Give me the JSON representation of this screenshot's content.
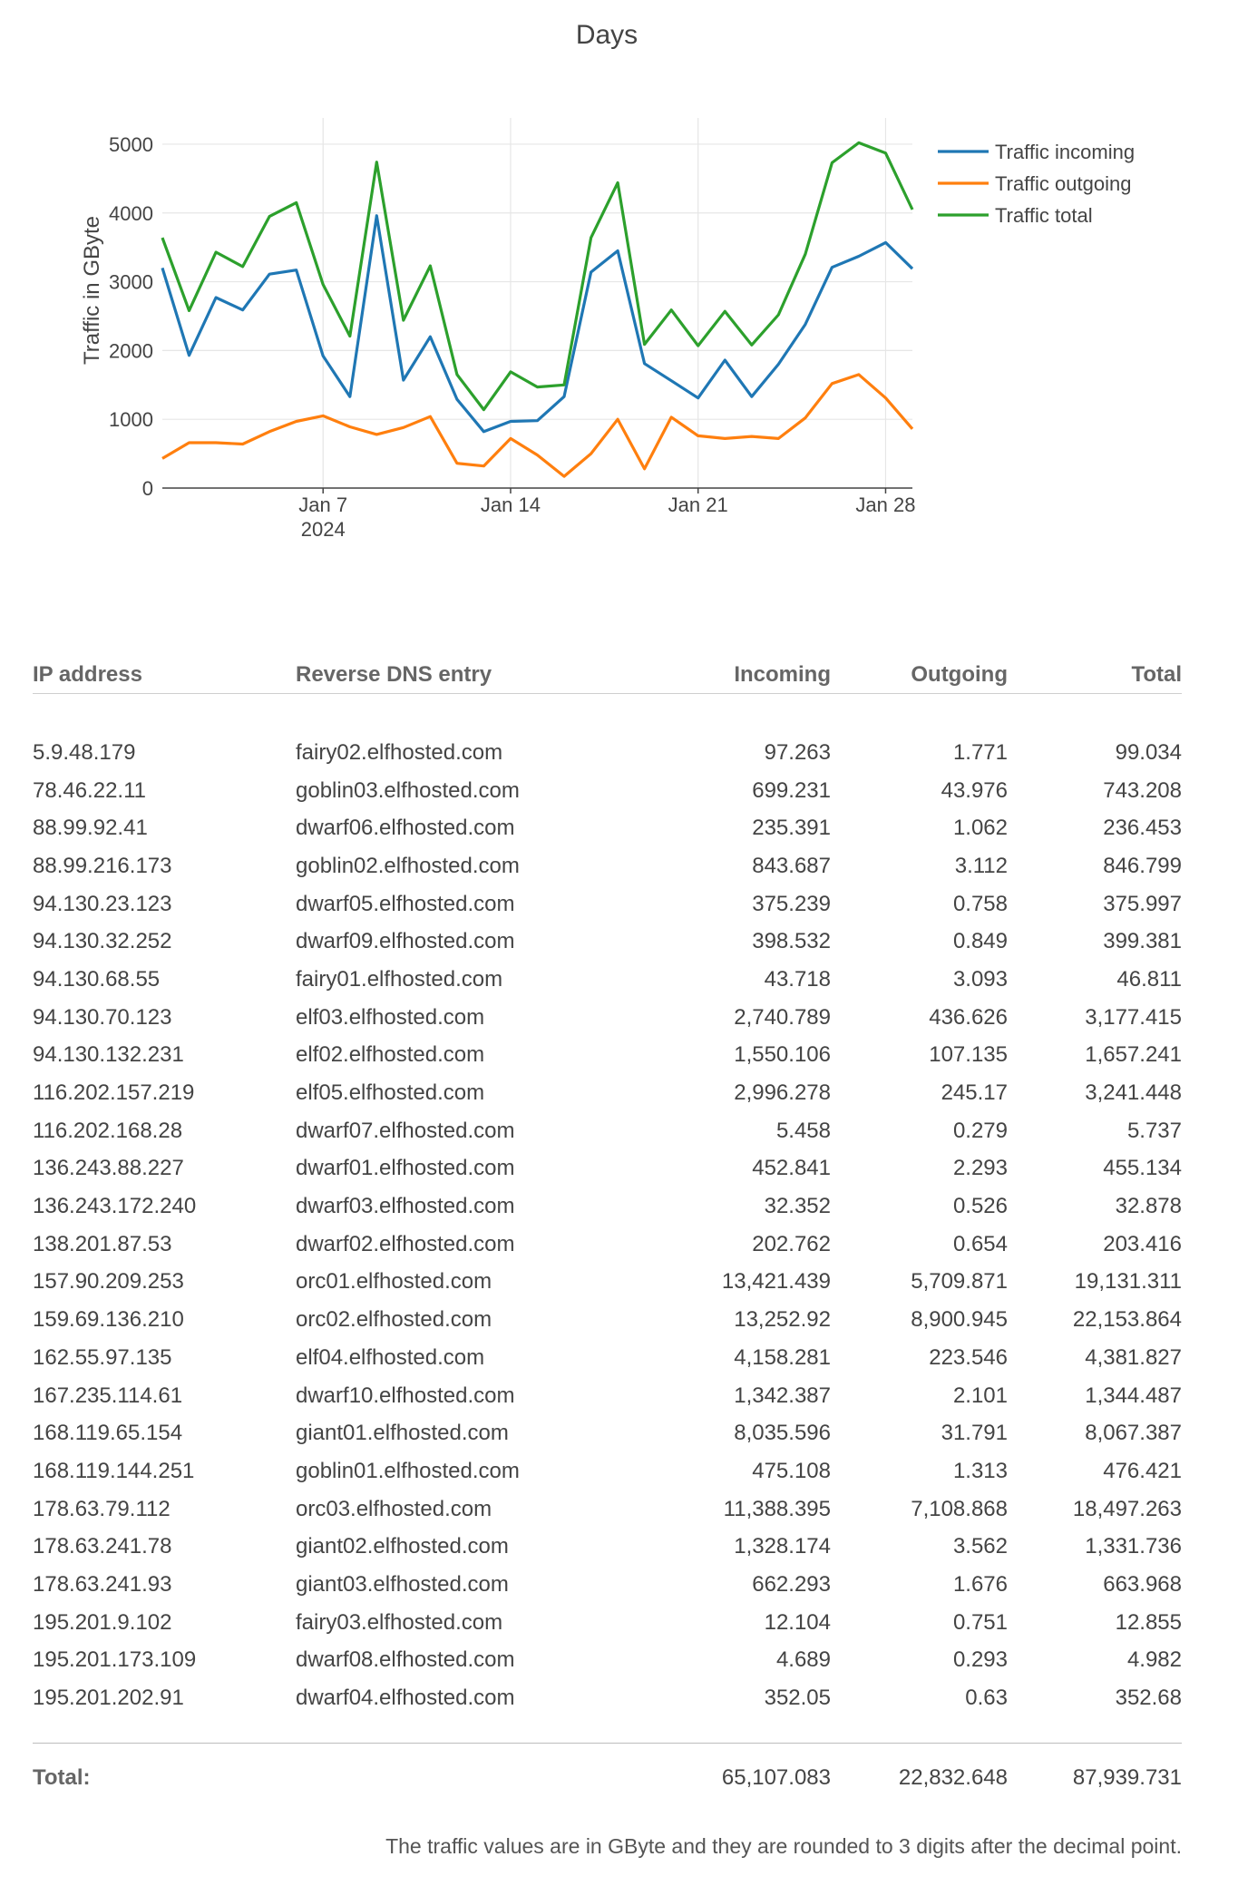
{
  "chart_data": {
    "type": "line",
    "title": "Days",
    "ylabel": "Traffic in GByte",
    "xlabel": "",
    "ylim": [
      0,
      5250
    ],
    "yticks": [
      0,
      1000,
      2000,
      3000,
      4000,
      5000
    ],
    "x": [
      "2024-01-01",
      "2024-01-02",
      "2024-01-03",
      "2024-01-04",
      "2024-01-05",
      "2024-01-06",
      "2024-01-07",
      "2024-01-08",
      "2024-01-09",
      "2024-01-10",
      "2024-01-11",
      "2024-01-12",
      "2024-01-13",
      "2024-01-14",
      "2024-01-15",
      "2024-01-16",
      "2024-01-17",
      "2024-01-18",
      "2024-01-19",
      "2024-01-20",
      "2024-01-21",
      "2024-01-22",
      "2024-01-23",
      "2024-01-24",
      "2024-01-25",
      "2024-01-26",
      "2024-01-27",
      "2024-01-28",
      "2024-01-29"
    ],
    "xticks": [
      {
        "date": "2024-01-07",
        "label": "Jan 7",
        "sublabel": "2024"
      },
      {
        "date": "2024-01-14",
        "label": "Jan 14",
        "sublabel": ""
      },
      {
        "date": "2024-01-21",
        "label": "Jan 21",
        "sublabel": ""
      },
      {
        "date": "2024-01-28",
        "label": "Jan 28",
        "sublabel": ""
      }
    ],
    "legend_position": "top-right",
    "grid": true,
    "series": [
      {
        "name": "Traffic incoming",
        "color": "#1f77b4",
        "values": [
          3200,
          1930,
          2770,
          2590,
          3110,
          3170,
          1920,
          1330,
          3960,
          1570,
          2200,
          1290,
          820,
          970,
          980,
          1330,
          3140,
          3450,
          1810,
          1560,
          1310,
          1860,
          1330,
          1800,
          2380,
          3210,
          3370,
          3570,
          3190
        ]
      },
      {
        "name": "Traffic outgoing",
        "color": "#ff7f0e",
        "values": [
          430,
          660,
          660,
          640,
          820,
          970,
          1050,
          890,
          780,
          880,
          1040,
          360,
          320,
          720,
          480,
          170,
          500,
          1000,
          280,
          1030,
          760,
          720,
          750,
          720,
          1020,
          1520,
          1650,
          1310,
          860
        ]
      },
      {
        "name": "Traffic total",
        "color": "#2ca02c",
        "values": [
          3640,
          2580,
          3430,
          3220,
          3950,
          4150,
          2960,
          2210,
          4740,
          2440,
          3230,
          1650,
          1140,
          1690,
          1470,
          1500,
          3640,
          4440,
          2090,
          2590,
          2070,
          2570,
          2080,
          2520,
          3400,
          4730,
          5020,
          4870,
          4050
        ]
      }
    ]
  },
  "table": {
    "headers": {
      "ip": "IP address",
      "dns": "Reverse DNS entry",
      "incoming": "Incoming",
      "outgoing": "Outgoing",
      "total": "Total"
    },
    "rows": [
      {
        "ip": "5.9.48.179",
        "dns": "fairy02.elfhosted.com",
        "incoming": "97.263",
        "outgoing": "1.771",
        "total": "99.034"
      },
      {
        "ip": "78.46.22.11",
        "dns": "goblin03.elfhosted.com",
        "incoming": "699.231",
        "outgoing": "43.976",
        "total": "743.208"
      },
      {
        "ip": "88.99.92.41",
        "dns": "dwarf06.elfhosted.com",
        "incoming": "235.391",
        "outgoing": "1.062",
        "total": "236.453"
      },
      {
        "ip": "88.99.216.173",
        "dns": "goblin02.elfhosted.com",
        "incoming": "843.687",
        "outgoing": "3.112",
        "total": "846.799"
      },
      {
        "ip": "94.130.23.123",
        "dns": "dwarf05.elfhosted.com",
        "incoming": "375.239",
        "outgoing": "0.758",
        "total": "375.997"
      },
      {
        "ip": "94.130.32.252",
        "dns": "dwarf09.elfhosted.com",
        "incoming": "398.532",
        "outgoing": "0.849",
        "total": "399.381"
      },
      {
        "ip": "94.130.68.55",
        "dns": "fairy01.elfhosted.com",
        "incoming": "43.718",
        "outgoing": "3.093",
        "total": "46.811"
      },
      {
        "ip": "94.130.70.123",
        "dns": "elf03.elfhosted.com",
        "incoming": "2,740.789",
        "outgoing": "436.626",
        "total": "3,177.415"
      },
      {
        "ip": "94.130.132.231",
        "dns": "elf02.elfhosted.com",
        "incoming": "1,550.106",
        "outgoing": "107.135",
        "total": "1,657.241"
      },
      {
        "ip": "116.202.157.219",
        "dns": "elf05.elfhosted.com",
        "incoming": "2,996.278",
        "outgoing": "245.17",
        "total": "3,241.448"
      },
      {
        "ip": "116.202.168.28",
        "dns": "dwarf07.elfhosted.com",
        "incoming": "5.458",
        "outgoing": "0.279",
        "total": "5.737"
      },
      {
        "ip": "136.243.88.227",
        "dns": "dwarf01.elfhosted.com",
        "incoming": "452.841",
        "outgoing": "2.293",
        "total": "455.134"
      },
      {
        "ip": "136.243.172.240",
        "dns": "dwarf03.elfhosted.com",
        "incoming": "32.352",
        "outgoing": "0.526",
        "total": "32.878"
      },
      {
        "ip": "138.201.87.53",
        "dns": "dwarf02.elfhosted.com",
        "incoming": "202.762",
        "outgoing": "0.654",
        "total": "203.416"
      },
      {
        "ip": "157.90.209.253",
        "dns": "orc01.elfhosted.com",
        "incoming": "13,421.439",
        "outgoing": "5,709.871",
        "total": "19,131.311"
      },
      {
        "ip": "159.69.136.210",
        "dns": "orc02.elfhosted.com",
        "incoming": "13,252.92",
        "outgoing": "8,900.945",
        "total": "22,153.864"
      },
      {
        "ip": "162.55.97.135",
        "dns": "elf04.elfhosted.com",
        "incoming": "4,158.281",
        "outgoing": "223.546",
        "total": "4,381.827"
      },
      {
        "ip": "167.235.114.61",
        "dns": "dwarf10.elfhosted.com",
        "incoming": "1,342.387",
        "outgoing": "2.101",
        "total": "1,344.487"
      },
      {
        "ip": "168.119.65.154",
        "dns": "giant01.elfhosted.com",
        "incoming": "8,035.596",
        "outgoing": "31.791",
        "total": "8,067.387"
      },
      {
        "ip": "168.119.144.251",
        "dns": "goblin01.elfhosted.com",
        "incoming": "475.108",
        "outgoing": "1.313",
        "total": "476.421"
      },
      {
        "ip": "178.63.79.112",
        "dns": "orc03.elfhosted.com",
        "incoming": "11,388.395",
        "outgoing": "7,108.868",
        "total": "18,497.263"
      },
      {
        "ip": "178.63.241.78",
        "dns": "giant02.elfhosted.com",
        "incoming": "1,328.174",
        "outgoing": "3.562",
        "total": "1,331.736"
      },
      {
        "ip": "178.63.241.93",
        "dns": "giant03.elfhosted.com",
        "incoming": "662.293",
        "outgoing": "1.676",
        "total": "663.968"
      },
      {
        "ip": "195.201.9.102",
        "dns": "fairy03.elfhosted.com",
        "incoming": "12.104",
        "outgoing": "0.751",
        "total": "12.855"
      },
      {
        "ip": "195.201.173.109",
        "dns": "dwarf08.elfhosted.com",
        "incoming": "4.689",
        "outgoing": "0.293",
        "total": "4.982"
      },
      {
        "ip": "195.201.202.91",
        "dns": "dwarf04.elfhosted.com",
        "incoming": "352.05",
        "outgoing": "0.63",
        "total": "352.68"
      }
    ],
    "totals": {
      "label": "Total:",
      "incoming": "65,107.083",
      "outgoing": "22,832.648",
      "total": "87,939.731"
    }
  },
  "footnote": "The traffic values are in GByte and they are rounded to 3 digits after the decimal point."
}
